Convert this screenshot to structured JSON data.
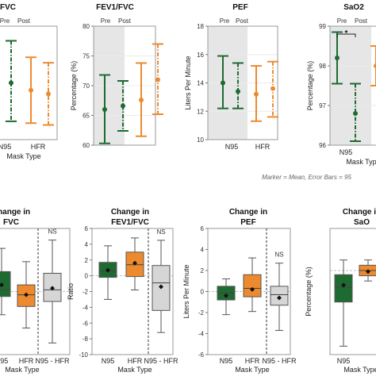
{
  "colors": {
    "n95": "#1e6b32",
    "hfr": "#ee8a2e",
    "diff": "#d6d6d6",
    "shade": "#e6e6e6",
    "axis": "#666666"
  },
  "note": "Marker = Mean, Error Bars = 95",
  "chart_data": [
    {
      "type": "errorbar",
      "title": "FVC",
      "xlabel": "Mask Type",
      "ylabel": "",
      "top_labels": [
        "Pre",
        "Post"
      ],
      "categories": [
        "N95",
        "HFR"
      ],
      "series": [
        {
          "group": "N95",
          "color": "#1e6b32",
          "points": [
            {
              "label": "Post",
              "mean": 3.15,
              "low": 2.1,
              "high": 4.3
            }
          ]
        },
        {
          "group": "HFR",
          "color": "#ee8a2e",
          "points": [
            {
              "label": "Pre",
              "mean": 2.95,
              "low": 2.05,
              "high": 3.85
            },
            {
              "label": "Post",
              "mean": 2.85,
              "low": 2.0,
              "high": 3.7
            }
          ]
        }
      ],
      "ylim": [
        1.6,
        4.7
      ],
      "yticks": []
    },
    {
      "type": "errorbar",
      "title": "FEV1/FVC",
      "xlabel": "",
      "ylabel": "Percentage (%)",
      "top_labels": [
        "Pre",
        "Post"
      ],
      "categories": [],
      "series": [
        {
          "group": "N95",
          "color": "#1e6b32",
          "points": [
            {
              "label": "Pre",
              "mean": 66,
              "low": 60.3,
              "high": 71.8
            },
            {
              "label": "Post",
              "mean": 66.6,
              "low": 62.4,
              "high": 70.8
            }
          ]
        },
        {
          "group": "HFR",
          "color": "#ee8a2e",
          "points": [
            {
              "label": "Pre",
              "mean": 67.6,
              "low": 61.5,
              "high": 73.8
            },
            {
              "label": "Post",
              "mean": 71,
              "low": 65.2,
              "high": 77
            }
          ]
        }
      ],
      "ylim": [
        60,
        80
      ],
      "yticks": [
        60,
        65,
        70,
        75,
        80
      ]
    },
    {
      "type": "errorbar",
      "title": "PEF",
      "xlabel": "",
      "ylabel": "Liters Per Minute",
      "top_labels": [
        "Pre",
        "Post"
      ],
      "categories": [
        "N95",
        "HFR"
      ],
      "series": [
        {
          "group": "N95",
          "color": "#1e6b32",
          "points": [
            {
              "label": "Pre",
              "mean": 14,
              "low": 12.2,
              "high": 15.9
            },
            {
              "label": "Post",
              "mean": 13.4,
              "low": 12.2,
              "high": 15.4
            }
          ]
        },
        {
          "group": "HFR",
          "color": "#ee8a2e",
          "points": [
            {
              "label": "Pre",
              "mean": 13.2,
              "low": 11.3,
              "high": 15.2
            },
            {
              "label": "Post",
              "mean": 13.6,
              "low": 11.6,
              "high": 15.5
            }
          ]
        }
      ],
      "ylim": [
        10,
        18
      ],
      "yticks": [
        10,
        12,
        14,
        16,
        18
      ]
    },
    {
      "type": "errorbar",
      "title": "SaO2",
      "xlabel": "Mask Type",
      "ylabel": "Percentage (%)",
      "top_labels": [
        "Pre",
        "Post"
      ],
      "categories": [
        "N95"
      ],
      "annotation": "*",
      "series": [
        {
          "group": "N95",
          "color": "#1e6b32",
          "points": [
            {
              "label": "Pre",
              "mean": 98.2,
              "low": 97.55,
              "high": 98.85
            },
            {
              "label": "Post",
              "mean": 96.8,
              "low": 96.1,
              "high": 97.55
            }
          ]
        },
        {
          "group": "HFR",
          "color": "#ee8a2e",
          "points": [
            {
              "label": "Pre",
              "mean": 98.0,
              "low": 97.5,
              "high": 98.5
            }
          ]
        }
      ],
      "ylim": [
        96,
        99
      ],
      "yticks": [
        96,
        97,
        98,
        99
      ]
    },
    {
      "type": "box",
      "title": "Change in\nFVC",
      "xlabel": "Mask Type",
      "ylabel": "",
      "categories": [
        "N95",
        "HFR",
        "N95 - HFR"
      ],
      "annotation": "NS",
      "boxes": [
        {
          "name": "N95",
          "color": "#1e6b32",
          "q1": -0.15,
          "median": 0.05,
          "q3": 0.6,
          "whisker_low": -0.7,
          "whisker_high": 1.3,
          "mean": 0.2
        },
        {
          "name": "HFR",
          "color": "#ee8a2e",
          "q1": -0.45,
          "median": -0.1,
          "q3": 0.2,
          "whisker_low": -1.1,
          "whisker_high": 0.9,
          "mean": -0.1
        },
        {
          "name": "N95 - HFR",
          "color": "#d6d6d6",
          "q1": -0.3,
          "median": 0.05,
          "q3": 0.55,
          "whisker_low": -1.55,
          "whisker_high": 1.55,
          "mean": 0.1
        }
      ],
      "ylim": [
        -1.9,
        1.9
      ],
      "yticks": []
    },
    {
      "type": "box",
      "title": "Change in\nFEV1/FVC",
      "xlabel": "Mask Type",
      "ylabel": "Ratio",
      "categories": [
        "N95",
        "HFR",
        "N95 - HFR"
      ],
      "annotation": "NS",
      "boxes": [
        {
          "name": "N95",
          "color": "#1e6b32",
          "q1": -0.2,
          "median": 0.6,
          "q3": 1.7,
          "whisker_low": -3.0,
          "whisker_high": 3.8,
          "mean": 0.7
        },
        {
          "name": "HFR",
          "color": "#ee8a2e",
          "q1": -0.1,
          "median": 1.4,
          "q3": 3.0,
          "whisker_low": -1.8,
          "whisker_high": 4.8,
          "mean": 1.6
        },
        {
          "name": "N95 - HFR",
          "color": "#d6d6d6",
          "q1": -4.4,
          "median": -0.9,
          "q3": 1.3,
          "whisker_low": -7.2,
          "whisker_high": 4.5,
          "mean": -1.4
        }
      ],
      "ylim": [
        -10,
        6
      ],
      "yticks": [
        -10,
        -8,
        -6,
        -4,
        -2,
        0,
        2,
        4,
        6
      ]
    },
    {
      "type": "box",
      "title": "Change in\nPEF",
      "xlabel": "Mask Type",
      "ylabel": "Liters Per Minute",
      "categories": [
        "N95",
        "HFR",
        "N95 - HFR"
      ],
      "annotation": "NS",
      "boxes": [
        {
          "name": "N95",
          "color": "#1e6b32",
          "q1": -0.8,
          "median": -0.15,
          "q3": 0.5,
          "whisker_low": -2.2,
          "whisker_high": 1.2,
          "mean": -0.4
        },
        {
          "name": "HFR",
          "color": "#ee8a2e",
          "q1": -0.5,
          "median": 0.3,
          "q3": 1.6,
          "whisker_low": -1.9,
          "whisker_high": 3.2,
          "mean": 0.2
        },
        {
          "name": "N95 - HFR",
          "color": "#d6d6d6",
          "q1": -1.3,
          "median": -0.3,
          "q3": 0.5,
          "whisker_low": -3.7,
          "whisker_high": 2.7,
          "mean": -0.6
        }
      ],
      "ylim": [
        -6,
        6
      ],
      "yticks": [
        -6,
        -4,
        -2,
        0,
        2,
        4,
        6
      ]
    },
    {
      "type": "box",
      "title": "Change in\nSaO",
      "xlabel": "Mask Type",
      "ylabel": "Percentage (%)",
      "categories": [
        "N95"
      ],
      "boxes": [
        {
          "name": "N95",
          "color": "#1e6b32",
          "q1": -3.0,
          "median": -1.6,
          "q3": -0.4,
          "whisker_low": -7.2,
          "whisker_high": 1.0,
          "mean": -1.4
        },
        {
          "name": "HFR",
          "color": "#ee8a2e",
          "q1": -0.5,
          "median": 0.0,
          "q3": 0.5,
          "whisker_low": -1.0,
          "whisker_high": 1.0,
          "mean": -0.1
        }
      ],
      "ylim": [
        -8,
        4
      ],
      "yticks": []
    }
  ]
}
